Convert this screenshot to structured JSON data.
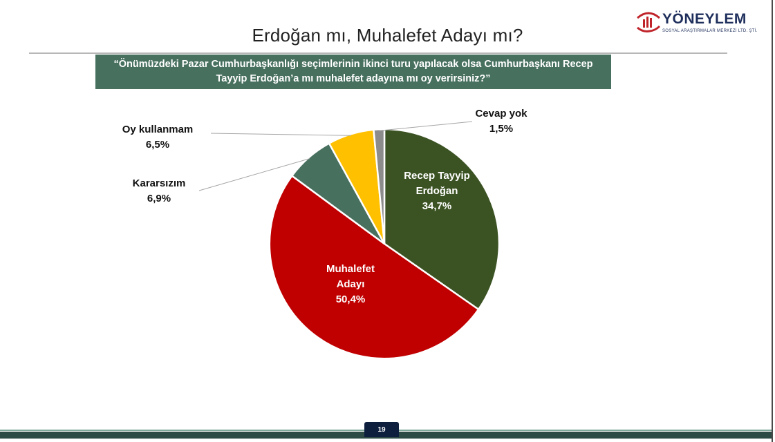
{
  "slide": {
    "title": "Erdoğan mı, Muhalefet Adayı mı?",
    "question_line1": "“Önümüzdeki Pazar Cumhurbaşkanlığı seçimlerinin ikinci turu yapılacak olsa Cumhurbaşkanı Recep",
    "question_line2": "Tayyip Erdoğan’a mı muhalefet adayına mı oy verirsiniz?”",
    "page_number": "19"
  },
  "logo": {
    "name": "YÖNEYLEM",
    "subtitle": "SOSYAL ARAŞTIRMALAR MERKEZİ LTD. ŞTİ.",
    "icon": "bar-chart-hand-icon",
    "color": "#c0242b"
  },
  "chart_data": {
    "type": "pie",
    "slices": [
      {
        "name": "Recep Tayyip Erdoğan",
        "lines": [
          "Recep Tayyip",
          "Erdoğan"
        ],
        "value": 34.7,
        "label": "34,7%",
        "color": "#3b5323",
        "label_placement": "inside",
        "text_color": "#ffffff"
      },
      {
        "name": "Muhalefet Adayı",
        "lines": [
          "Muhalefet",
          "Adayı"
        ],
        "value": 50.4,
        "label": "50,4%",
        "color": "#c00000",
        "label_placement": "inside",
        "text_color": "#ffffff"
      },
      {
        "name": "Kararsızım",
        "lines": [
          "Kararsızım"
        ],
        "value": 6.9,
        "label": "6,9%",
        "color": "#47705f",
        "label_placement": "outside",
        "text_color": "#111111"
      },
      {
        "name": "Oy kullanmam",
        "lines": [
          "Oy kullanmam"
        ],
        "value": 6.5,
        "label": "6,5%",
        "color": "#ffc000",
        "label_placement": "outside",
        "text_color": "#111111"
      },
      {
        "name": "Cevap yok",
        "lines": [
          "Cevap yok"
        ],
        "value": 1.5,
        "label": "1,5%",
        "color": "#8c8c8c",
        "label_placement": "outside",
        "text_color": "#111111"
      }
    ],
    "start": "top",
    "direction": "clockwise",
    "legend": "none"
  }
}
